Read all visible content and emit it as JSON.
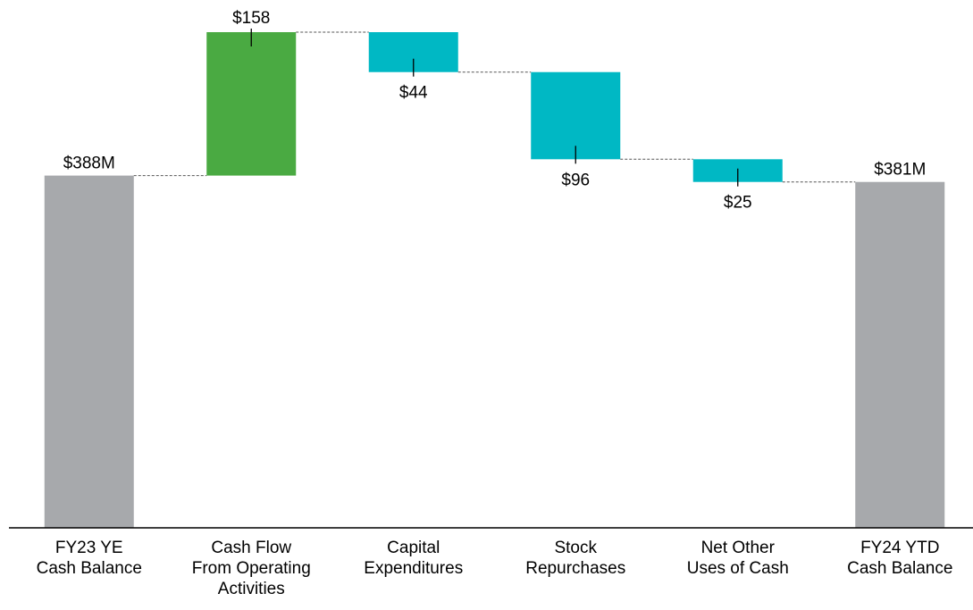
{
  "chart_data": {
    "type": "waterfall",
    "categories": [
      [
        "FY23 YE",
        "Cash Balance"
      ],
      [
        "Cash Flow",
        "From Operating",
        "Activities"
      ],
      [
        "Capital",
        "Expenditures"
      ],
      [
        "Stock",
        "Repurchases"
      ],
      [
        "Net Other",
        "Uses of Cash"
      ],
      [
        "FY24 YTD",
        "Cash Balance"
      ]
    ],
    "values": [
      388,
      158,
      44,
      96,
      25,
      381
    ],
    "value_labels": [
      "$388M",
      "$158",
      "$44",
      "$96",
      "$25",
      "$381M"
    ],
    "measure": [
      "total",
      "increase",
      "decrease",
      "decrease",
      "decrease",
      "total"
    ],
    "colors": {
      "total": "#a7a9ac",
      "increase": "#4aaa42",
      "decrease": "#00b8c4"
    }
  }
}
